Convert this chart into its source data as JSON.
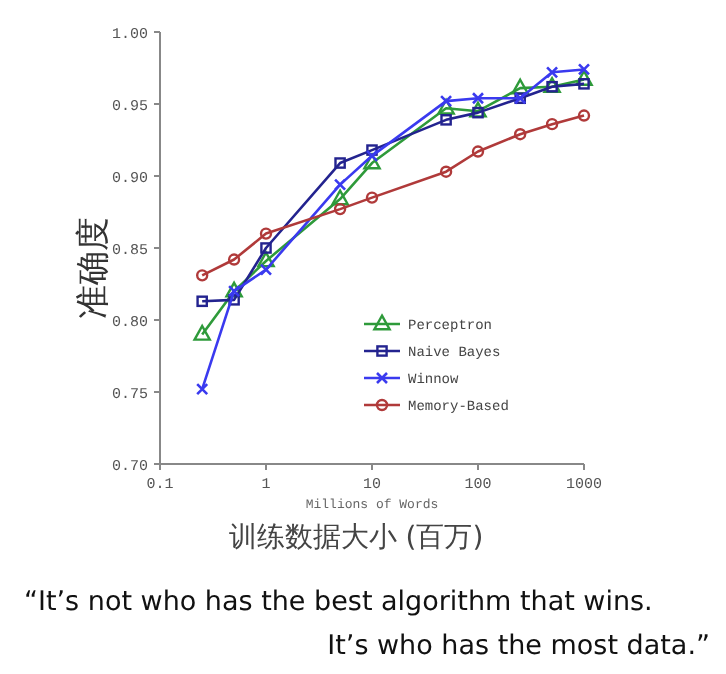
{
  "chart_data": {
    "type": "line",
    "xlabel": "Millions of Words",
    "ylabel": "准确度",
    "log": "x",
    "xlim": [
      0.1,
      1000
    ],
    "xticks": [
      0.1,
      1,
      10,
      100,
      1000
    ],
    "ylim": [
      0.7,
      1.0
    ],
    "yticks": [
      {
        "value": 0.7,
        "label": "0.70"
      },
      {
        "value": 0.75,
        "label": "0.75"
      },
      {
        "value": 0.8,
        "label": "0.80"
      },
      {
        "value": 0.85,
        "label": "0.85"
      },
      {
        "value": 0.9,
        "label": "0.90"
      },
      {
        "value": 0.95,
        "label": "0.95"
      },
      {
        "value": 1.0,
        "label": "1.00"
      }
    ],
    "grid": false,
    "legend": "bottom right",
    "x": [
      0.25,
      0.5,
      1,
      5,
      10,
      50,
      100,
      250,
      500,
      1000
    ],
    "series": [
      {
        "name": "Perceptron",
        "color": "#2e9a3a",
        "marker": "triangle",
        "values": [
          0.79,
          0.82,
          0.841,
          0.884,
          0.909,
          0.947,
          0.945,
          0.961,
          0.962,
          0.967
        ]
      },
      {
        "name": "Naive Bayes",
        "color": "#23238f",
        "marker": "square",
        "values": [
          0.813,
          0.814,
          0.85,
          0.909,
          0.918,
          0.939,
          0.944,
          0.954,
          0.962,
          0.964
        ]
      },
      {
        "name": "Winnow",
        "color": "#3a3aef",
        "marker": "cross",
        "values": [
          0.752,
          0.82,
          0.835,
          0.894,
          0.914,
          0.952,
          0.954,
          0.954,
          0.972,
          0.974
        ]
      },
      {
        "name": "Memory-Based",
        "color": "#b03a3a",
        "marker": "circle",
        "values": [
          0.831,
          0.842,
          0.86,
          0.877,
          0.885,
          0.903,
          0.917,
          0.929,
          0.936,
          0.942
        ]
      }
    ],
    "annotations": [
      "训练数据大小 (百万)",
      "“It’s not who has the best algorithm that wins.",
      "It’s who has the most data.”"
    ]
  }
}
